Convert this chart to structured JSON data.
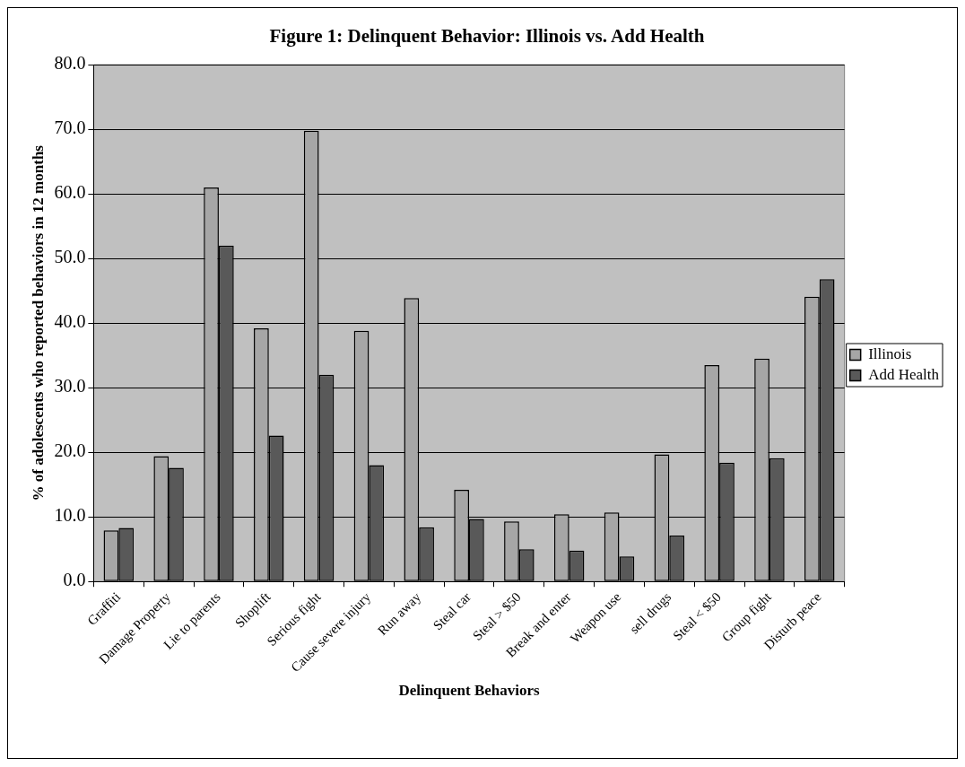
{
  "chart_data": {
    "type": "bar",
    "title": "Figure 1: Delinquent Behavior: Illinois vs. Add Health",
    "xlabel": "Delinquent Behaviors",
    "ylabel": "% of adolescents who reported behaviors in 12 months",
    "categories": [
      "Graffiti",
      "Damage Property",
      "Lie to parents",
      "Shoplift",
      "Serious fight",
      "Cause severe injury",
      "Run away",
      "Steal car",
      "Steal > $50",
      "Break and enter",
      "Weapon use",
      "sell drugs",
      "Steal < $50",
      "Group fight",
      "Disturb peace"
    ],
    "series": [
      {
        "name": "Illinois",
        "color": "#a6a6a6",
        "values": [
          7.9,
          19.4,
          61.0,
          39.2,
          69.8,
          38.8,
          43.9,
          14.2,
          9.3,
          10.4,
          10.7,
          19.7,
          33.5,
          34.5,
          44.1
        ]
      },
      {
        "name": "Add Health",
        "color": "#595959",
        "values": [
          8.3,
          17.6,
          52.0,
          22.6,
          32.0,
          18.0,
          8.4,
          9.7,
          5.0,
          4.8,
          3.9,
          7.1,
          18.4,
          19.1,
          46.8
        ]
      }
    ],
    "ylim": [
      0,
      80
    ],
    "yticks": [
      {
        "value": 0,
        "label": "0.0"
      },
      {
        "value": 10,
        "label": "10.0"
      },
      {
        "value": 20,
        "label": "20.0"
      },
      {
        "value": 30,
        "label": "30.0"
      },
      {
        "value": 40,
        "label": "40.0"
      },
      {
        "value": 50,
        "label": "50.0"
      },
      {
        "value": 60,
        "label": "60.0"
      },
      {
        "value": 70,
        "label": "70.0"
      },
      {
        "value": 80,
        "label": "80.0"
      }
    ],
    "grid": "y",
    "legend": "right"
  }
}
